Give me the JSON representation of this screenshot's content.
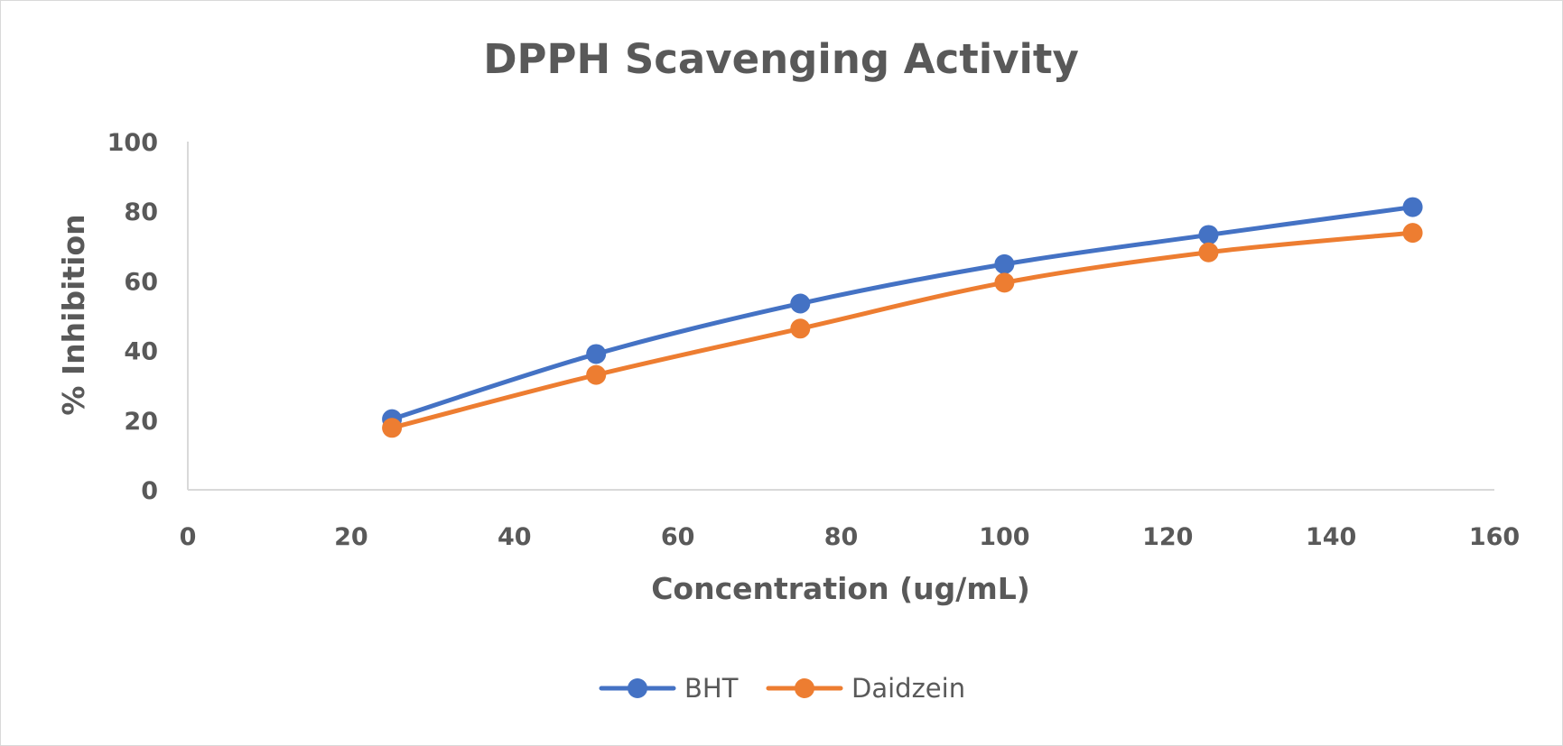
{
  "chart_data": {
    "type": "line",
    "title": "DPPH Scavenging Activity",
    "xlabel": "Concentration (ug/mL)",
    "ylabel": "% Inhibition",
    "xlim": [
      0,
      160
    ],
    "ylim": [
      0,
      100
    ],
    "x_ticks": [
      0,
      20,
      40,
      60,
      80,
      100,
      120,
      140,
      160
    ],
    "y_ticks": [
      0,
      20,
      40,
      60,
      80,
      100
    ],
    "x_tick_labels": [
      "0",
      "20",
      "40",
      "60",
      "80",
      "100",
      "120",
      "140",
      "160"
    ],
    "y_tick_labels": [
      "0",
      "20",
      "40",
      "60",
      "80",
      "100"
    ],
    "grid": false,
    "legend_position": "bottom",
    "x": [
      25,
      50,
      75,
      100,
      125,
      150
    ],
    "series": [
      {
        "name": "BHT",
        "color": "#4472C4",
        "values": [
          20.3,
          39.0,
          53.5,
          64.8,
          73.2,
          81.2
        ]
      },
      {
        "name": "Daidzein",
        "color": "#ED7D31",
        "values": [
          17.8,
          33.0,
          46.3,
          59.5,
          68.2,
          73.8
        ]
      }
    ]
  }
}
